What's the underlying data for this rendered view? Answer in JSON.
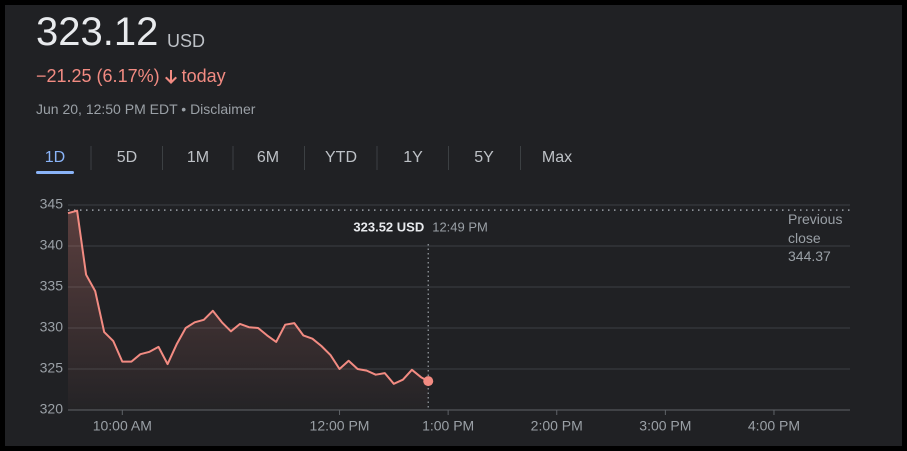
{
  "header": {
    "price": "323.12",
    "currency": "USD",
    "change": "−21.25 (6.17%)",
    "change_period": "today",
    "timestamp": "Jun 20, 12:50 PM EDT •",
    "disclaimer": "Disclaimer"
  },
  "ranges": [
    "1D",
    "5D",
    "1M",
    "6M",
    "YTD",
    "1Y",
    "5Y",
    "Max"
  ],
  "active_range": "1D",
  "chart_data": {
    "type": "line",
    "color": "#f28b82",
    "x": [
      570,
      575,
      580,
      585,
      590,
      595,
      600,
      605,
      610,
      615,
      620,
      625,
      630,
      635,
      640,
      645,
      650,
      655,
      660,
      665,
      670,
      675,
      680,
      685,
      690,
      695,
      700,
      705,
      710,
      715,
      720,
      725,
      730,
      735,
      740,
      745,
      750,
      755,
      760,
      765,
      769
    ],
    "values": [
      344.0,
      344.3,
      336.5,
      334.5,
      329.5,
      328.4,
      325.9,
      325.9,
      326.8,
      327.1,
      327.7,
      325.6,
      328.0,
      330.0,
      330.7,
      331.0,
      332.1,
      330.7,
      329.6,
      330.5,
      330.1,
      330.0,
      329.1,
      328.3,
      330.4,
      330.6,
      329.1,
      328.7,
      327.8,
      326.7,
      325.0,
      326.0,
      325.0,
      324.8,
      324.3,
      324.5,
      323.2,
      323.7,
      324.9,
      324.0,
      323.52
    ],
    "xlim": [
      570,
      1002
    ],
    "xticks": [
      {
        "value": 600,
        "label": "10:00 AM"
      },
      {
        "value": 720,
        "label": "12:00 PM"
      },
      {
        "value": 780,
        "label": "1:00 PM"
      },
      {
        "value": 840,
        "label": "2:00 PM"
      },
      {
        "value": 900,
        "label": "3:00 PM"
      },
      {
        "value": 960,
        "label": "4:00 PM"
      }
    ],
    "ylim": [
      320,
      345
    ],
    "yticks": [
      320,
      325,
      330,
      335,
      340,
      345
    ],
    "grid": true,
    "previous_close_label": "Previous close",
    "previous_close": 344.37,
    "tooltip": {
      "value_label": "323.52 USD",
      "time": "12:49 PM"
    }
  }
}
